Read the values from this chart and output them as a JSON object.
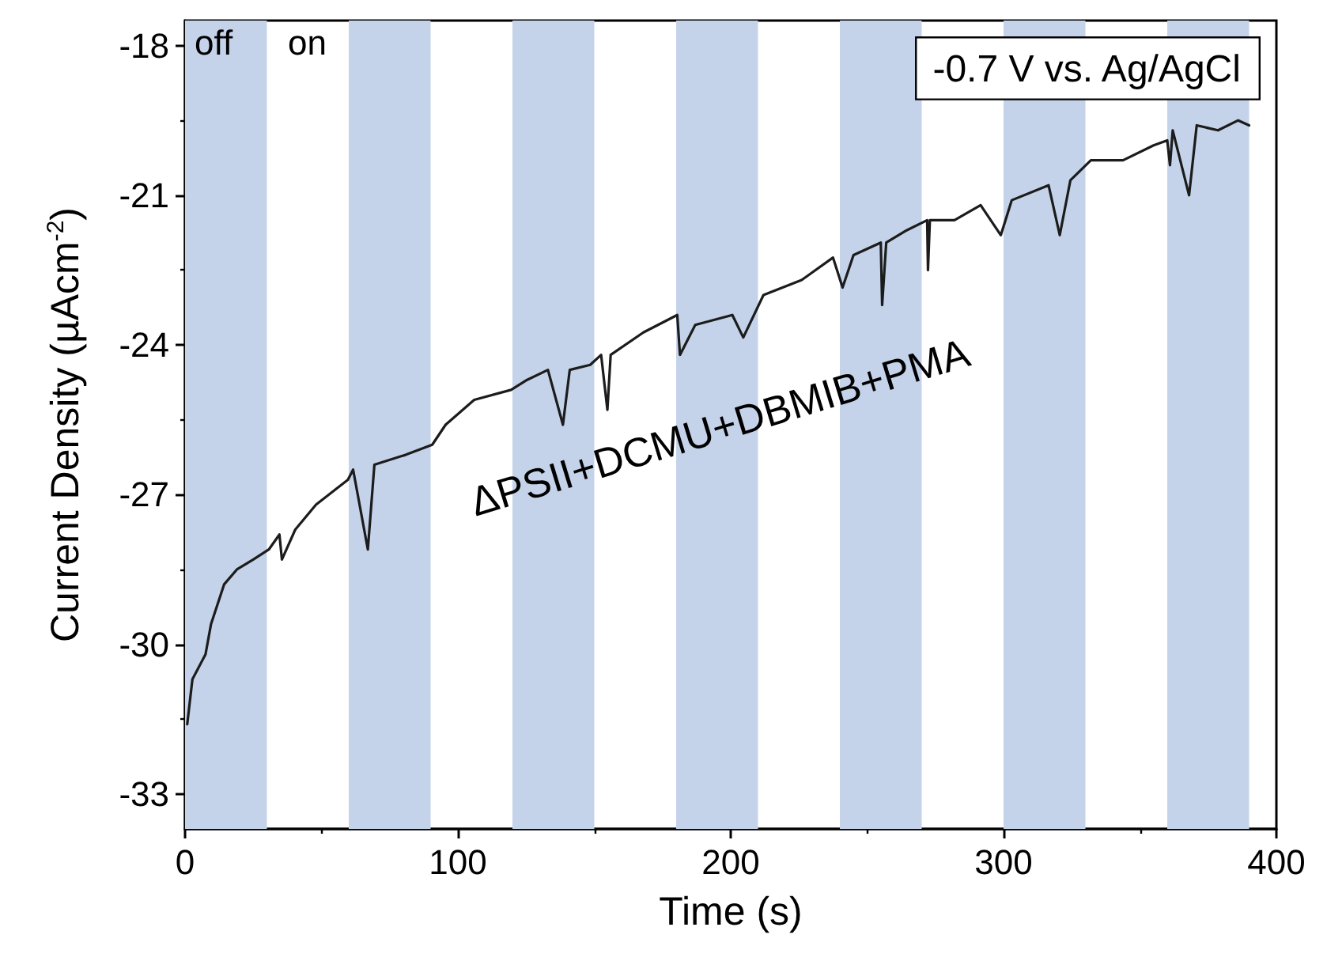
{
  "chart_data": {
    "type": "line",
    "xlabel": "Time (s)",
    "ylabel": "Current Density (µAcm$^{-2}$)",
    "x": [
      0.8,
      2.7,
      7.5,
      9.5,
      14.3,
      19,
      25,
      30.7,
      34.6,
      35.5,
      40.4,
      48,
      59.7,
      61.6,
      67,
      69.4,
      81,
      90.6,
      95.5,
      106,
      119.5,
      125.4,
      133,
      138.5,
      141,
      148.5,
      152.5,
      154.8,
      156,
      168,
      180.4,
      181.4,
      187,
      200.6,
      204.6,
      212,
      226,
      237.5,
      241,
      245,
      255,
      255.5,
      257,
      264.6,
      272,
      272.3,
      273,
      282,
      291.6,
      299,
      303,
      316.5,
      320.6,
      324.5,
      332,
      343.8,
      355,
      360,
      361,
      362,
      368,
      370.8,
      378.6,
      386,
      390
    ],
    "series": [
      {
        "color": "#1c1c1c",
        "values": [
          -31.6,
          -30.7,
          -30.2,
          -29.6,
          -28.8,
          -28.5,
          -28.3,
          -28.1,
          -27.8,
          -28.3,
          -27.7,
          -27.2,
          -26.7,
          -26.5,
          -28.1,
          -26.4,
          -26.2,
          -26,
          -25.6,
          -25.1,
          -24.9,
          -24.7,
          -24.5,
          -25.6,
          -24.5,
          -24.4,
          -24.2,
          -25.3,
          -24.2,
          -23.75,
          -23.4,
          -24.2,
          -23.6,
          -23.4,
          -23.85,
          -23,
          -22.7,
          -22.25,
          -22.85,
          -22.2,
          -21.95,
          -23.2,
          -21.95,
          -21.7,
          -21.5,
          -22.5,
          -21.5,
          -21.5,
          -21.2,
          -21.8,
          -21.1,
          -20.8,
          -21.8,
          -20.7,
          -20.3,
          -20.3,
          -20,
          -19.9,
          -20.4,
          -19.7,
          -21,
          -19.6,
          -19.7,
          -19.5,
          -19.6
        ]
      }
    ],
    "xlim": [
      0,
      400
    ],
    "xticks": [
      0,
      100,
      200,
      300,
      400
    ],
    "ylim": [
      -33.7,
      -17.5
    ],
    "yticks": [
      -33,
      -30,
      -27,
      -24,
      -21,
      -18
    ],
    "bands": [
      {
        "axis": "x",
        "from": 0,
        "to": 30,
        "color": "#c5d3ea"
      },
      {
        "axis": "x",
        "from": 60,
        "to": 90,
        "color": "#c5d3ea"
      },
      {
        "axis": "x",
        "from": 120,
        "to": 150,
        "color": "#c5d3ea"
      },
      {
        "axis": "x",
        "from": 180,
        "to": 210,
        "color": "#c5d3ea"
      },
      {
        "axis": "x",
        "from": 240,
        "to": 270,
        "color": "#c5d3ea"
      },
      {
        "axis": "x",
        "from": 300,
        "to": 330,
        "color": "#c5d3ea"
      },
      {
        "axis": "x",
        "from": 360,
        "to": 390,
        "color": "#c5d3ea"
      }
    ],
    "annotations": [
      "off",
      "on",
      "-0.7 V vs. Ag/AgCl",
      "ΔPSII+DCMU+DBMIB+PMA"
    ],
    "grid": false,
    "marker": "none",
    "line_style": "solid"
  }
}
